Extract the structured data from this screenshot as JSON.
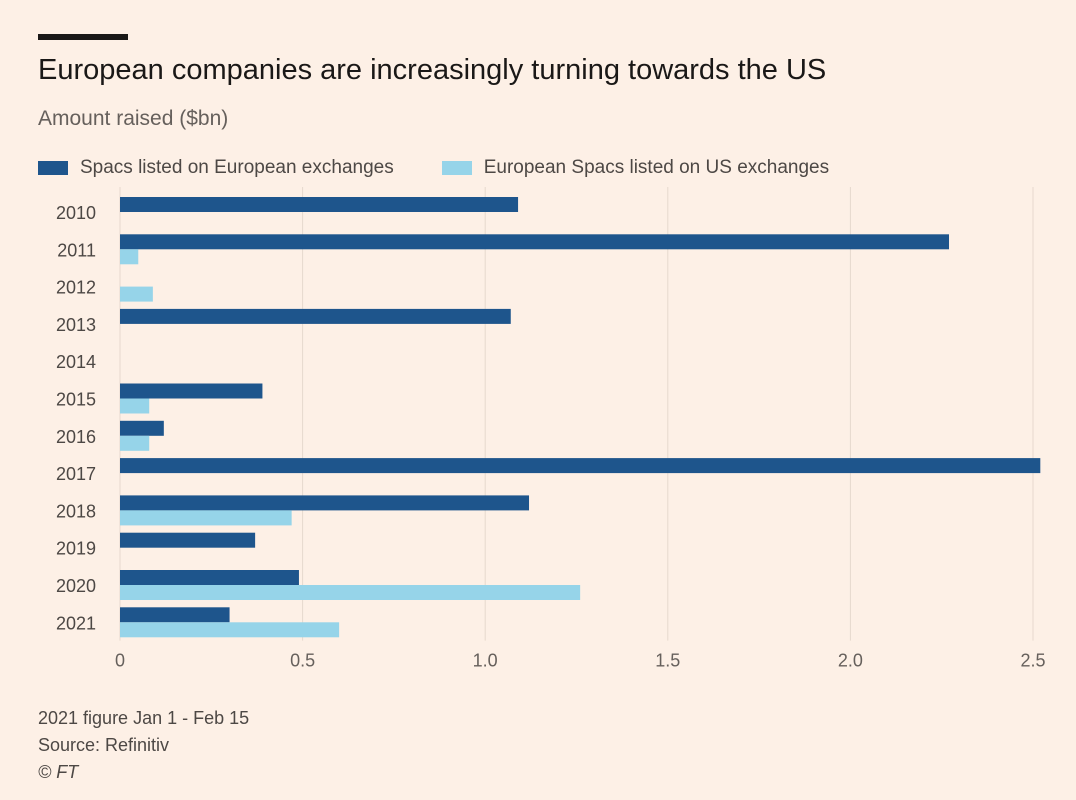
{
  "chart_data": {
    "type": "bar",
    "orientation": "horizontal",
    "title": "European companies are increasingly turning towards the US",
    "subtitle": "Amount raised ($bn)",
    "categories": [
      "2010",
      "2011",
      "2012",
      "2013",
      "2014",
      "2015",
      "2016",
      "2017",
      "2018",
      "2019",
      "2020",
      "2021"
    ],
    "series": [
      {
        "name": "Spacs listed on European exchanges",
        "color": "#1e558c",
        "values": [
          1.09,
          2.27,
          0,
          1.07,
          0,
          0.39,
          0.12,
          2.52,
          1.12,
          0.37,
          0.49,
          0.3
        ]
      },
      {
        "name": "European Spacs listed on US exchanges",
        "color": "#96d4e9",
        "values": [
          0,
          0.05,
          0.09,
          0,
          0,
          0.08,
          0.08,
          0,
          0.47,
          0,
          1.26,
          0.6
        ]
      }
    ],
    "xlim": [
      0,
      2.5
    ],
    "xticks": [
      "0",
      "0.5",
      "1.0",
      "1.5",
      "2.0",
      "2.5"
    ],
    "grid": true,
    "legend": "top"
  },
  "footer": {
    "note": "2021 figure Jan 1 - Feb 15",
    "source": "Source: Refinitiv",
    "copyright": "© FT"
  }
}
